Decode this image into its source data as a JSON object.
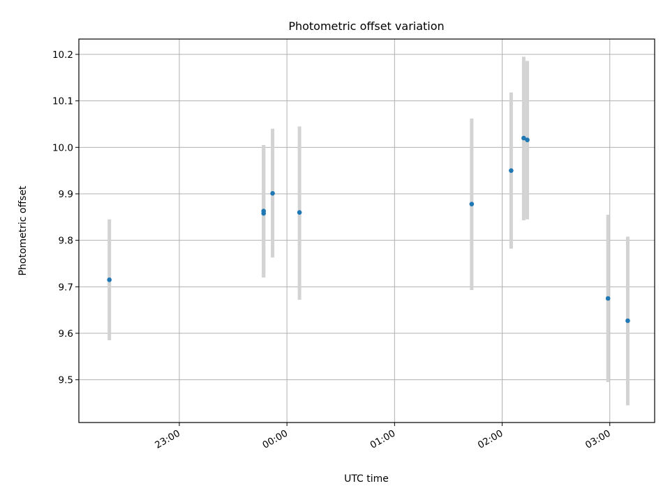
{
  "chart_data": {
    "type": "scatter",
    "title": "Photometric offset variation",
    "xlabel": "UTC time",
    "ylabel": "Photometric offset",
    "grid": true,
    "x_ticks": [
      "23:00",
      "00:00",
      "01:00",
      "02:00",
      "03:00"
    ],
    "y_ticks": [
      "9.5",
      "9.6",
      "9.7",
      "9.8",
      "9.9",
      "10.0",
      "10.1",
      "10.2"
    ],
    "xlim": [
      "22:04",
      "03:25"
    ],
    "ylim": [
      9.408,
      10.233
    ],
    "marker_color": "#1f77b4",
    "errorbar_color": "#d3d3d3",
    "points": [
      {
        "x": "22:21",
        "y": 9.715,
        "yerr_low": 9.585,
        "yerr_high": 9.845
      },
      {
        "x": "23:47",
        "y": 9.863,
        "yerr_low": 9.72,
        "yerr_high": 10.005
      },
      {
        "x": "23:47",
        "y": 9.858,
        "yerr_low": 9.72,
        "yerr_high": 10.0
      },
      {
        "x": "23:52",
        "y": 9.901,
        "yerr_low": 9.763,
        "yerr_high": 10.04
      },
      {
        "x": "00:07",
        "y": 9.86,
        "yerr_low": 9.672,
        "yerr_high": 10.045
      },
      {
        "x": "01:43",
        "y": 9.878,
        "yerr_low": 9.693,
        "yerr_high": 10.062
      },
      {
        "x": "02:05",
        "y": 9.95,
        "yerr_low": 9.782,
        "yerr_high": 10.118
      },
      {
        "x": "02:12",
        "y": 10.02,
        "yerr_low": 9.843,
        "yerr_high": 10.195
      },
      {
        "x": "02:14",
        "y": 10.016,
        "yerr_low": 9.845,
        "yerr_high": 10.186
      },
      {
        "x": "02:59",
        "y": 9.675,
        "yerr_low": 9.495,
        "yerr_high": 9.855
      },
      {
        "x": "03:10",
        "y": 9.627,
        "yerr_low": 9.445,
        "yerr_high": 9.808
      }
    ]
  }
}
